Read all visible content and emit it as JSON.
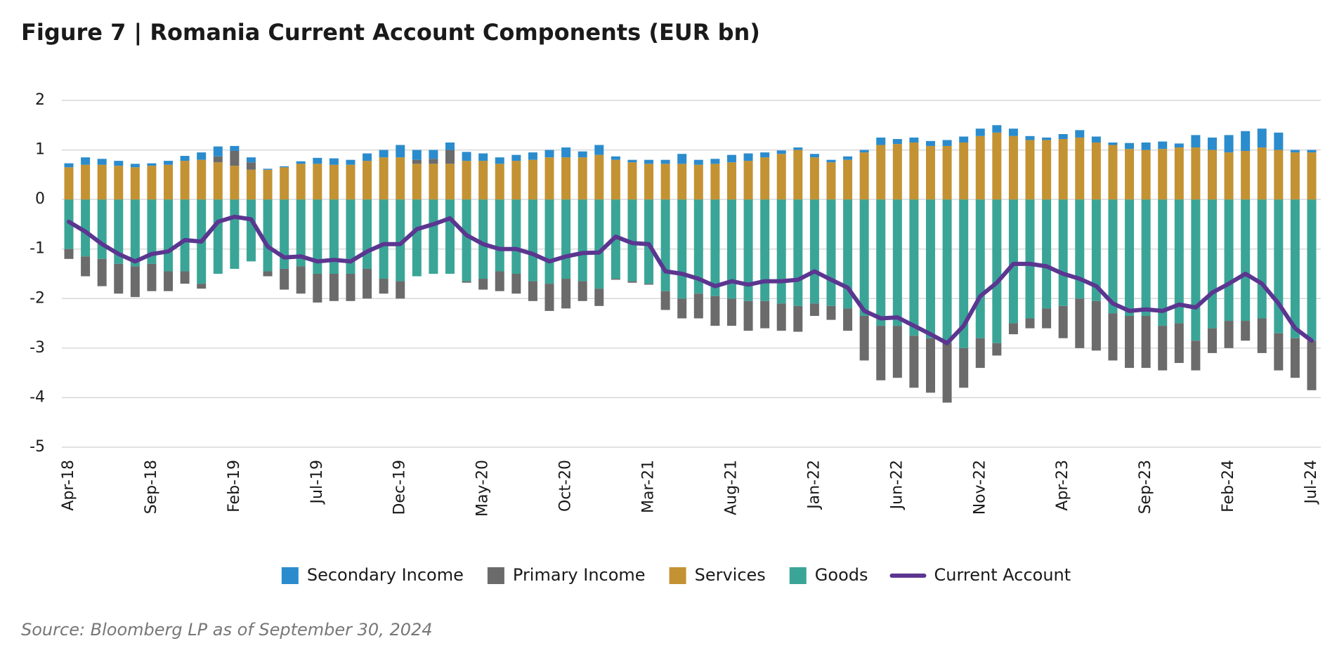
{
  "chart_data": {
    "type": "bar",
    "stacked": true,
    "title": "Figure 7 | Romania Current Account Components (EUR bn)",
    "source": "Source: Bloomberg LP as of September 30, 2024",
    "categories": [
      "Apr-18",
      null,
      null,
      null,
      null,
      "Sep-18",
      null,
      null,
      null,
      null,
      "Feb-19",
      null,
      null,
      null,
      null,
      "Jul-19",
      null,
      null,
      null,
      null,
      "Dec-19",
      null,
      null,
      null,
      null,
      "May-20",
      null,
      null,
      null,
      null,
      "Oct-20",
      null,
      null,
      null,
      null,
      "Mar-21",
      null,
      null,
      null,
      null,
      "Aug-21",
      null,
      null,
      null,
      null,
      "Jan-22",
      null,
      null,
      null,
      null,
      "Jun-22",
      null,
      null,
      null,
      null,
      "Nov-22",
      null,
      null,
      null,
      null,
      "Apr-23",
      null,
      null,
      null,
      null,
      "Sep-23",
      null,
      null,
      null,
      null,
      "Feb-24",
      null,
      null,
      null,
      null,
      "Jul-24"
    ],
    "series": [
      {
        "name": "Goods",
        "kind": "bar",
        "color": "#3aa597",
        "values": [
          -1.0,
          -1.15,
          -1.2,
          -1.3,
          -1.35,
          -1.3,
          -1.45,
          -1.45,
          -1.7,
          -1.5,
          -1.4,
          -1.25,
          -1.45,
          -1.4,
          -1.35,
          -1.5,
          -1.5,
          -1.5,
          -1.4,
          -1.6,
          -1.65,
          -1.55,
          -1.5,
          -1.5,
          -1.65,
          -1.6,
          -1.45,
          -1.5,
          -1.65,
          -1.7,
          -1.6,
          -1.65,
          -1.8,
          -1.6,
          -1.65,
          -1.7,
          -1.85,
          -2.0,
          -1.9,
          -1.95,
          -2.0,
          -2.05,
          -2.05,
          -2.1,
          -2.15,
          -2.1,
          -2.15,
          -2.2,
          -2.35,
          -2.55,
          -2.55,
          -2.75,
          -2.8,
          -2.9,
          -3.0,
          -2.8,
          -2.9,
          -2.5,
          -2.4,
          -2.2,
          -2.15,
          -2.0,
          -2.05,
          -2.3,
          -2.35,
          -2.35,
          -2.55,
          -2.5,
          -2.85,
          -2.6,
          -2.45,
          -2.45,
          -2.4,
          -2.7,
          -2.8,
          -2.85
        ]
      },
      {
        "name": "Services",
        "kind": "bar",
        "color": "#c39233",
        "values": [
          0.65,
          0.7,
          0.7,
          0.68,
          0.65,
          0.68,
          0.7,
          0.78,
          0.8,
          0.75,
          0.68,
          0.6,
          0.6,
          0.65,
          0.72,
          0.72,
          0.7,
          0.7,
          0.78,
          0.85,
          0.85,
          0.72,
          0.72,
          0.72,
          0.78,
          0.78,
          0.72,
          0.78,
          0.8,
          0.85,
          0.85,
          0.85,
          0.9,
          0.8,
          0.75,
          0.72,
          0.72,
          0.72,
          0.7,
          0.72,
          0.75,
          0.78,
          0.85,
          0.92,
          1.0,
          0.85,
          0.75,
          0.8,
          0.95,
          1.1,
          1.12,
          1.15,
          1.08,
          1.08,
          1.15,
          1.28,
          1.35,
          1.28,
          1.2,
          1.2,
          1.22,
          1.25,
          1.15,
          1.1,
          1.02,
          1.0,
          1.02,
          1.05,
          1.05,
          1.0,
          0.95,
          0.98,
          1.05,
          1.0,
          0.95,
          0.95
        ]
      },
      {
        "name": "Primary Income",
        "kind": "bar",
        "color": "#6b6b6b",
        "values": [
          -0.2,
          -0.4,
          -0.55,
          -0.6,
          -0.62,
          -0.55,
          -0.4,
          -0.25,
          -0.1,
          0.12,
          0.3,
          0.15,
          -0.1,
          -0.42,
          -0.55,
          -0.58,
          -0.55,
          -0.55,
          -0.6,
          -0.3,
          -0.35,
          0.08,
          0.1,
          0.28,
          -0.03,
          -0.22,
          -0.4,
          -0.4,
          -0.4,
          -0.55,
          -0.6,
          -0.4,
          -0.35,
          -0.02,
          -0.03,
          -0.02,
          -0.38,
          -0.4,
          -0.5,
          -0.6,
          -0.55,
          -0.6,
          -0.55,
          -0.55,
          -0.52,
          -0.25,
          -0.28,
          -0.45,
          -0.9,
          -1.1,
          -1.05,
          -1.05,
          -1.1,
          -1.2,
          -0.8,
          -0.6,
          -0.25,
          -0.22,
          -0.2,
          -0.4,
          -0.65,
          -1.0,
          -1.0,
          -0.95,
          -1.05,
          -1.05,
          -0.9,
          -0.8,
          -0.6,
          -0.5,
          -0.55,
          -0.4,
          -0.7,
          -0.75,
          -0.8,
          -1.0
        ]
      },
      {
        "name": "Secondary Income",
        "kind": "bar",
        "color": "#2b8ccd",
        "values": [
          0.08,
          0.15,
          0.12,
          0.1,
          0.07,
          0.05,
          0.08,
          0.1,
          0.15,
          0.2,
          0.1,
          0.1,
          0.02,
          0.02,
          0.05,
          0.12,
          0.13,
          0.1,
          0.15,
          0.15,
          0.25,
          0.2,
          0.18,
          0.15,
          0.18,
          0.15,
          0.13,
          0.12,
          0.15,
          0.15,
          0.2,
          0.12,
          0.2,
          0.07,
          0.05,
          0.08,
          0.08,
          0.2,
          0.1,
          0.1,
          0.15,
          0.15,
          0.1,
          0.07,
          0.05,
          0.07,
          0.05,
          0.07,
          0.05,
          0.15,
          0.1,
          0.1,
          0.1,
          0.12,
          0.12,
          0.15,
          0.15,
          0.15,
          0.08,
          0.05,
          0.1,
          0.15,
          0.12,
          0.05,
          0.12,
          0.15,
          0.15,
          0.08,
          0.25,
          0.25,
          0.35,
          0.4,
          0.38,
          0.35,
          0.05,
          0.05
        ]
      },
      {
        "name": "Current Account",
        "kind": "line",
        "color": "#5b3690",
        "values": [
          -0.45,
          -0.65,
          -0.9,
          -1.1,
          -1.25,
          -1.1,
          -1.05,
          -0.82,
          -0.85,
          -0.45,
          -0.35,
          -0.4,
          -0.95,
          -1.17,
          -1.15,
          -1.25,
          -1.22,
          -1.25,
          -1.05,
          -0.9,
          -0.9,
          -0.6,
          -0.5,
          -0.38,
          -0.72,
          -0.9,
          -1.0,
          -1.0,
          -1.1,
          -1.25,
          -1.15,
          -1.08,
          -1.07,
          -0.75,
          -0.88,
          -0.9,
          -1.45,
          -1.5,
          -1.6,
          -1.75,
          -1.65,
          -1.72,
          -1.65,
          -1.65,
          -1.62,
          -1.45,
          -1.62,
          -1.78,
          -2.25,
          -2.4,
          -2.38,
          -2.55,
          -2.72,
          -2.9,
          -2.55,
          -1.95,
          -1.68,
          -1.3,
          -1.3,
          -1.35,
          -1.5,
          -1.6,
          -1.75,
          -2.1,
          -2.25,
          -2.22,
          -2.25,
          -2.12,
          -2.18,
          -1.88,
          -1.7,
          -1.5,
          -1.7,
          -2.1,
          -2.6,
          -2.85
        ]
      }
    ],
    "legend_order": [
      3,
      2,
      1,
      0,
      4
    ],
    "ylim": [
      -5,
      2
    ],
    "yticks": [
      2,
      1,
      0,
      -1,
      -2,
      -3,
      -4,
      -5
    ],
    "grid": true
  }
}
